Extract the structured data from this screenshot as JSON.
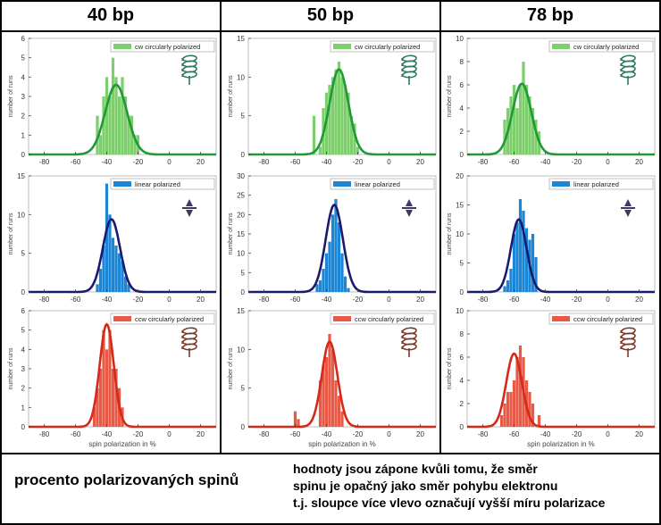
{
  "columns": [
    "40 bp",
    "50 bp",
    "78 bp"
  ],
  "footer": {
    "left": "procento polarizovaných spinů",
    "right_lines": [
      "hodnoty jsou zápone kvůli tomu, že směr",
      "spinu je opačný jako směr pohybu elektronu",
      "t.j. sloupce více vlevo označují vyšší míru polarizace"
    ]
  },
  "colors": {
    "cw_bar": "#7ccf6a",
    "cw_line": "#1f9a36",
    "lin_bar": "#1b86d6",
    "lin_line": "#1a1a6e",
    "ccw_bar": "#e85a45",
    "ccw_line": "#d42a1a"
  },
  "icons": [
    "cw-helix-icon",
    "linear-arrows-icon",
    "ccw-helix-icon"
  ],
  "chart_data": [
    {
      "type": "bar",
      "panel": "40bp-cw",
      "legend": "cw circularly polarized",
      "ylabel": "number of runs",
      "xlim": [
        -90,
        30
      ],
      "ylim": [
        0,
        6
      ],
      "yticks": [
        0,
        1,
        2,
        3,
        4,
        5,
        6
      ],
      "xticks": [
        -80,
        -60,
        -40,
        -20,
        0,
        20
      ],
      "x": [
        -46,
        -44,
        -42,
        -40,
        -38,
        -36,
        -34,
        -32,
        -30,
        -28,
        -26,
        -24,
        -22,
        -20
      ],
      "values": [
        2,
        1,
        3,
        4,
        3,
        5,
        4,
        3,
        4,
        3,
        2,
        2,
        1,
        1
      ],
      "fit": {
        "mu": -34,
        "sigma": 7,
        "peak": 3.6
      }
    },
    {
      "type": "bar",
      "panel": "40bp-linear",
      "legend": "linear polarized",
      "ylabel": "number of runs",
      "xlim": [
        -90,
        30
      ],
      "ylim": [
        0,
        15
      ],
      "yticks": [
        0,
        5,
        10,
        15
      ],
      "xticks": [
        -80,
        -60,
        -40,
        -20,
        0,
        20
      ],
      "x": [
        -46,
        -44,
        -42,
        -40,
        -38,
        -36,
        -34,
        -32,
        -30,
        -28,
        -26
      ],
      "values": [
        1,
        3,
        6,
        14,
        10,
        7,
        6,
        5,
        4,
        2,
        1
      ],
      "fit": {
        "mu": -37,
        "sigma": 5.5,
        "peak": 9.4
      }
    },
    {
      "type": "bar",
      "panel": "40bp-ccw",
      "legend": "ccw circularly polarized",
      "ylabel": "number of runs",
      "xlim": [
        -90,
        30
      ],
      "ylim": [
        0,
        6
      ],
      "yticks": [
        0,
        1,
        2,
        3,
        4,
        5,
        6
      ],
      "xticks": [
        -80,
        -60,
        -40,
        -20,
        0,
        20
      ],
      "x": [
        -48,
        -46,
        -44,
        -42,
        -40,
        -38,
        -36,
        -34,
        -32,
        -30
      ],
      "values": [
        1,
        2,
        3,
        5,
        4,
        5,
        3,
        3,
        2,
        1
      ],
      "fit": {
        "mu": -40,
        "sigma": 4.5,
        "peak": 5.3
      }
    },
    {
      "type": "bar",
      "panel": "50bp-cw",
      "legend": "cw circularly polarized",
      "ylabel": "number of runs",
      "xlim": [
        -90,
        30
      ],
      "ylim": [
        0,
        15
      ],
      "yticks": [
        0,
        5,
        10,
        15
      ],
      "xticks": [
        -80,
        -60,
        -40,
        -20,
        0,
        20
      ],
      "x": [
        -48,
        -44,
        -42,
        -40,
        -38,
        -36,
        -34,
        -32,
        -30,
        -28,
        -26,
        -24,
        -22,
        -20
      ],
      "values": [
        5,
        1,
        6,
        8,
        9,
        10,
        11,
        12,
        10,
        9,
        8,
        5,
        4,
        1
      ],
      "fit": {
        "mu": -32,
        "sigma": 6,
        "peak": 11
      }
    },
    {
      "type": "bar",
      "panel": "50bp-linear",
      "legend": "linear polarized",
      "ylabel": "number of runs",
      "xlim": [
        -90,
        30
      ],
      "ylim": [
        0,
        30
      ],
      "yticks": [
        0,
        5,
        10,
        15,
        20,
        25,
        30
      ],
      "xticks": [
        -80,
        -60,
        -40,
        -20,
        0,
        20
      ],
      "x": [
        -46,
        -44,
        -42,
        -40,
        -38,
        -36,
        -34,
        -32,
        -30,
        -28,
        -26
      ],
      "values": [
        2,
        3,
        6,
        10,
        13,
        20,
        24,
        18,
        10,
        4,
        1
      ],
      "fit": {
        "mu": -35,
        "sigma": 5.5,
        "peak": 22.5
      }
    },
    {
      "type": "bar",
      "panel": "50bp-ccw",
      "legend": "ccw circularly polarized",
      "ylabel": "number of runs",
      "xlim": [
        -90,
        30
      ],
      "ylim": [
        0,
        15
      ],
      "yticks": [
        0,
        5,
        10,
        15
      ],
      "xticks": [
        -80,
        -60,
        -40,
        -20,
        0,
        20
      ],
      "x": [
        -60,
        -58,
        -44,
        -42,
        -40,
        -38,
        -36,
        -34,
        -32,
        -30
      ],
      "values": [
        2,
        1,
        6,
        8,
        9,
        12,
        10,
        6,
        4,
        2
      ],
      "fit": {
        "mu": -38,
        "sigma": 5,
        "peak": 11
      }
    },
    {
      "type": "bar",
      "panel": "78bp-cw",
      "legend": "cw circularly polarized",
      "ylabel": "number of runs",
      "xlim": [
        -90,
        30
      ],
      "ylim": [
        0,
        10
      ],
      "yticks": [
        0,
        2,
        4,
        6,
        8,
        10
      ],
      "xticks": [
        -80,
        -60,
        -40,
        -20,
        0,
        20
      ],
      "x": [
        -66,
        -64,
        -62,
        -60,
        -58,
        -56,
        -54,
        -52,
        -50,
        -48,
        -46,
        -44
      ],
      "values": [
        3,
        4,
        5,
        6,
        4,
        6,
        8,
        6,
        5,
        4,
        3,
        2
      ],
      "fit": {
        "mu": -55,
        "sigma": 6,
        "peak": 6.1
      }
    },
    {
      "type": "bar",
      "panel": "78bp-linear",
      "legend": "linear polarized",
      "ylabel": "number of runs",
      "xlim": [
        -90,
        30
      ],
      "ylim": [
        0,
        20
      ],
      "yticks": [
        0,
        5,
        10,
        15,
        20
      ],
      "xticks": [
        -80,
        -60,
        -40,
        -20,
        0,
        20
      ],
      "x": [
        -66,
        -64,
        -62,
        -60,
        -58,
        -56,
        -54,
        -52,
        -50,
        -48,
        -46
      ],
      "values": [
        1,
        2,
        4,
        10,
        12,
        16,
        14,
        11,
        9,
        10,
        6
      ],
      "fit": {
        "mu": -57,
        "sigma": 5,
        "peak": 12.5
      }
    },
    {
      "type": "bar",
      "panel": "78bp-ccw",
      "legend": "ccw circularly polarized",
      "ylabel": "number of runs",
      "xlabel": "spin polarization in %",
      "xlim": [
        -90,
        30
      ],
      "ylim": [
        0,
        10
      ],
      "yticks": [
        0,
        2,
        4,
        6,
        8,
        10
      ],
      "xticks": [
        -80,
        -60,
        -40,
        -20,
        0,
        20
      ],
      "x": [
        -68,
        -66,
        -64,
        -62,
        -60,
        -58,
        -56,
        -54,
        -52,
        -50,
        -48,
        -44
      ],
      "values": [
        1,
        2,
        3,
        3,
        4,
        6,
        7,
        6,
        4,
        3,
        2,
        1
      ],
      "fit": {
        "mu": -60,
        "sigma": 5,
        "peak": 6.3
      }
    }
  ],
  "xlabels": {
    "bottom_left": "spin polarization in %",
    "bottom_mid": "spin polarization in %",
    "bottom_right": "spin polarization in %"
  }
}
